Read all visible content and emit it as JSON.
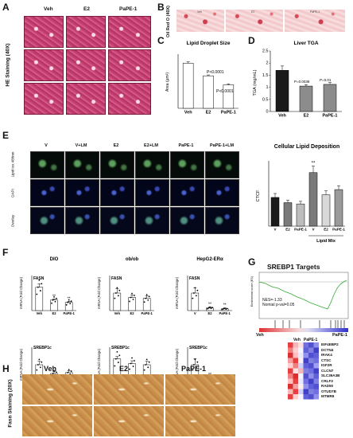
{
  "panels": {
    "A": "A",
    "B": "B",
    "C": "C",
    "D": "D",
    "E": "E",
    "F": "F",
    "G": "G",
    "H": "H"
  },
  "groups": {
    "veh": "Veh",
    "e2": "E2",
    "pape1": "PaPE-1"
  },
  "panel_a": {
    "side_label": "HE Staining (40X)"
  },
  "panel_b": {
    "side_label": "Oil Red O (40X)",
    "cols": [
      "Veh",
      "E2",
      "PaPE-1"
    ]
  },
  "panel_e": {
    "cols": [
      "V",
      "V+LM",
      "E2",
      "E2+LM",
      "PaPE-1",
      "PaPE-1+LM"
    ],
    "rows": [
      "Lipid tox 488nm",
      "DAPI",
      "Overlay"
    ]
  },
  "panel_f": {
    "col_titles": [
      "DIO",
      "ob/ob",
      "HepG2-ERα"
    ],
    "row_genes": [
      "FASN",
      "SREBP1c"
    ],
    "ylabel": "mRNA (Fold Change)",
    "x_dio": [
      "Veh",
      "E2",
      "PaPE-1"
    ],
    "x_cell": [
      "V",
      "E2",
      "PaPE-1"
    ]
  },
  "panel_g": {
    "title": "SREBP1 Targets",
    "ylabel": "Enrichment score (ES)",
    "nes": "NES=-1.33",
    "pval": "Nomial p-val=0.05",
    "left": "Veh",
    "right": "PaPE-1",
    "heat_cols": [
      "Veh",
      "PaPE-1"
    ],
    "genes": [
      "EIF4EBP2",
      "DCTN4",
      "IRAK4",
      "CTSC",
      "IGF2R",
      "CLCN7",
      "SLC39A3B",
      "CRLF3",
      "RAD50",
      "OTUD7B",
      "MTMR9"
    ]
  },
  "panel_h": {
    "side_label": "Fasn Staining (20X)",
    "cols": [
      "Veh",
      "E2",
      "PaPE-1"
    ]
  },
  "chart_data": [
    {
      "id": "C",
      "type": "bar",
      "title": "Lipid Droplet Size",
      "ylabel": "Area (μm²)",
      "categories": [
        "Veh",
        "E2",
        "PaPE-1"
      ],
      "values": [
        1.0,
        0.72,
        0.52
      ],
      "errors": [
        0.03,
        0.02,
        0.02
      ],
      "annotations": [
        "P<0.0001",
        "P<0.0001"
      ],
      "ylim": [
        0,
        1.2
      ]
    },
    {
      "id": "D",
      "type": "bar",
      "title": "Liver TGA",
      "ylabel": "TGA (mg/mL)",
      "categories": [
        "Veh",
        "E2",
        "PaPE-1"
      ],
      "values": [
        1.7,
        1.05,
        1.12
      ],
      "errors": [
        0.18,
        0.06,
        0.08
      ],
      "annotations": [
        "P=0.0038",
        "P=0.01"
      ],
      "colors": [
        "#1a1a1a",
        "#8c8c8c",
        "#8c8c8c"
      ],
      "ylim": [
        0,
        2.5
      ],
      "yticks": [
        0.0,
        0.5,
        1.0,
        1.5,
        2.0,
        2.5
      ]
    },
    {
      "id": "E-quant",
      "type": "bar",
      "title": "Cellular Lipid Deposition",
      "ylabel": "CTCF",
      "categories": [
        "V",
        "E2",
        "PaPE-1",
        "V",
        "E2",
        "PaPE-1"
      ],
      "group_label": "Lipid Mix",
      "values": [
        22,
        18,
        17,
        41,
        24,
        28
      ],
      "errors": [
        3,
        2,
        2,
        5,
        3,
        3
      ],
      "colors": [
        "#1a1a1a",
        "#7a7a7a",
        "#bdbdbd",
        "#7a7a7a",
        "#d9d9d9",
        "#9a9a9a"
      ],
      "annotations": [
        "**"
      ],
      "ylim": [
        0,
        50
      ]
    },
    {
      "id": "F-DIO-FASN",
      "type": "bar",
      "title": "DIO",
      "gene": "FASN",
      "categories": [
        "Veh",
        "E2",
        "PaPE-1"
      ],
      "values": [
        1.0,
        0.45,
        0.35
      ],
      "errors": [
        0.15,
        0.05,
        0.05
      ],
      "annotations": [
        "**",
        "**"
      ],
      "ylim": [
        0,
        1.5
      ]
    },
    {
      "id": "F-obob-FASN",
      "type": "bar",
      "title": "ob/ob",
      "gene": "FASN",
      "categories": [
        "Veh",
        "E2",
        "PaPE-1"
      ],
      "values": [
        1.0,
        0.75,
        0.7
      ],
      "errors": [
        0.25,
        0.15,
        0.15
      ],
      "ylim": [
        0,
        2.0
      ]
    },
    {
      "id": "F-HepG2-FASN",
      "type": "bar",
      "title": "HepG2-ERα",
      "gene": "FASN",
      "categories": [
        "V",
        "E2",
        "PaPE-1"
      ],
      "values": [
        1.0,
        0.15,
        0.1
      ],
      "errors": [
        0.3,
        0.05,
        0.05
      ],
      "annotations": [
        "**",
        "**"
      ],
      "ylim": [
        0,
        2.0
      ]
    },
    {
      "id": "F-DIO-SREBP1c",
      "type": "bar",
      "gene": "SREBP1c",
      "categories": [
        "Veh",
        "E2",
        "PaPE-1"
      ],
      "values": [
        1.0,
        0.5,
        0.55
      ],
      "errors": [
        0.2,
        0.1,
        0.1
      ],
      "ylim": [
        0,
        2.0
      ]
    },
    {
      "id": "F-obob-SREBP1c",
      "type": "bar",
      "gene": "SREBP1c",
      "categories": [
        "Veh",
        "E2",
        "PaPE-1"
      ],
      "values": [
        1.0,
        0.8,
        0.75
      ],
      "errors": [
        0.1,
        0.12,
        0.15
      ],
      "ylim": [
        0,
        1.5
      ]
    },
    {
      "id": "F-HepG2-SREBP1c",
      "type": "bar",
      "gene": "SREBP1c",
      "categories": [
        "V",
        "E2",
        "PaPE-1"
      ],
      "values": [
        1.0,
        0.2,
        0.08
      ],
      "errors": [
        0.35,
        0.08,
        0.04
      ],
      "annotations": [
        "**",
        "**"
      ],
      "ylim": [
        0,
        2.0
      ]
    }
  ]
}
